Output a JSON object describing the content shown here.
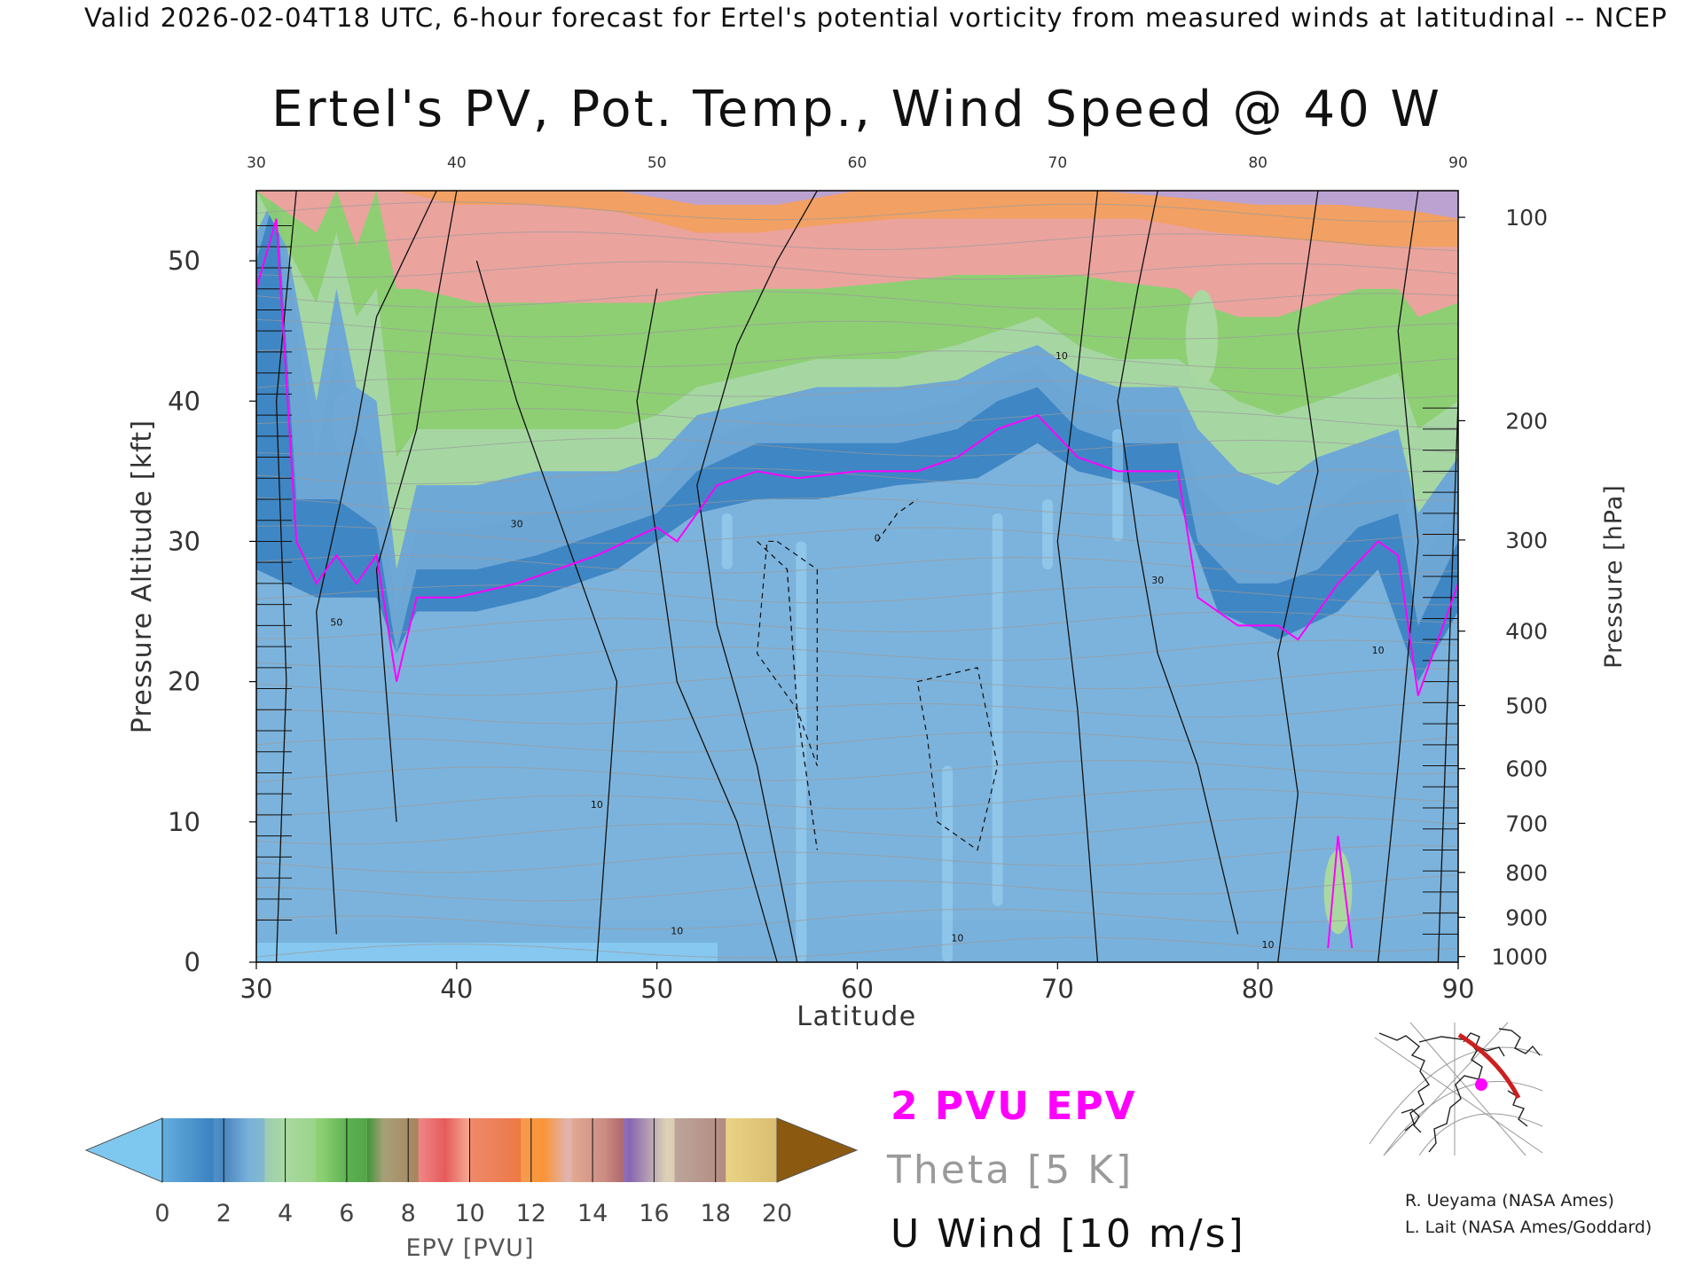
{
  "header": {
    "valid_line": "Valid 2026-02-04T18 UTC, 6-hour forecast for Ertel's potential vorticity from measured winds at latitudinal -- NCEP"
  },
  "chart_data": {
    "type": "heatmap",
    "title": "Ertel's PV, Pot. Temp., Wind Speed @ 40 W",
    "xlabel": "Latitude",
    "ylabel_left": "Pressure Altitude [kft]",
    "ylabel_right": "Pressure [hPa]",
    "xlim": [
      30,
      90
    ],
    "ylim": [
      0,
      55
    ],
    "x_ticks": [
      "30",
      "40",
      "50",
      "60",
      "70",
      "80",
      "90"
    ],
    "y_ticks": [
      "0",
      "10",
      "20",
      "30",
      "40",
      "50"
    ],
    "pressure_ticks": [
      {
        "label": "100",
        "kft": 53.1
      },
      {
        "label": "200",
        "kft": 38.6
      },
      {
        "label": "300",
        "kft": 30.1
      },
      {
        "label": "400",
        "kft": 23.6
      },
      {
        "label": "500",
        "kft": 18.3
      },
      {
        "label": "600",
        "kft": 13.8
      },
      {
        "label": "700",
        "kft": 9.9
      },
      {
        "label": "800",
        "kft": 6.4
      },
      {
        "label": "900",
        "kft": 3.2
      },
      {
        "label": "1000",
        "kft": 0.4
      }
    ],
    "tropopause_2pvu": [
      [
        30,
        48
      ],
      [
        31,
        53
      ],
      [
        32,
        30
      ],
      [
        33,
        27
      ],
      [
        34,
        29
      ],
      [
        35,
        27
      ],
      [
        36,
        29
      ],
      [
        37,
        20
      ],
      [
        38,
        26
      ],
      [
        40,
        26
      ],
      [
        43,
        27
      ],
      [
        47,
        29
      ],
      [
        50,
        31
      ],
      [
        51,
        30
      ],
      [
        53,
        34
      ],
      [
        55,
        35
      ],
      [
        57,
        34.5
      ],
      [
        60,
        35
      ],
      [
        63,
        35
      ],
      [
        65,
        36
      ],
      [
        67,
        38
      ],
      [
        69,
        39
      ],
      [
        71,
        36
      ],
      [
        73,
        35
      ],
      [
        76,
        35
      ],
      [
        77,
        26
      ],
      [
        79,
        24
      ],
      [
        81,
        24
      ],
      [
        82,
        23
      ],
      [
        84,
        27
      ],
      [
        86,
        30
      ],
      [
        87,
        29
      ],
      [
        88,
        19
      ],
      [
        89,
        23
      ],
      [
        90,
        27
      ]
    ],
    "pv_bands": [
      {
        "pvu": 1.5,
        "pts": [
          [
            30,
            28
          ],
          [
            33,
            26
          ],
          [
            36,
            26
          ],
          [
            37,
            22
          ],
          [
            38,
            25
          ],
          [
            41,
            25
          ],
          [
            44,
            26
          ],
          [
            48,
            28
          ],
          [
            50,
            30
          ],
          [
            52,
            32
          ],
          [
            55,
            33
          ],
          [
            58,
            33
          ],
          [
            62,
            34
          ],
          [
            66,
            34.5
          ],
          [
            69,
            37
          ],
          [
            71,
            35
          ],
          [
            74,
            34
          ],
          [
            76,
            33
          ],
          [
            78,
            25
          ],
          [
            81,
            23
          ],
          [
            84,
            25
          ],
          [
            86,
            28
          ],
          [
            88,
            20
          ],
          [
            90,
            25
          ]
        ]
      },
      {
        "pvu": 2.5,
        "pts": [
          [
            30,
            50
          ],
          [
            31,
            55
          ],
          [
            32,
            33
          ],
          [
            34,
            33
          ],
          [
            36,
            31
          ],
          [
            37,
            22
          ],
          [
            38,
            28
          ],
          [
            41,
            28
          ],
          [
            44,
            29
          ],
          [
            48,
            31
          ],
          [
            50,
            32
          ],
          [
            52,
            35
          ],
          [
            55,
            37
          ],
          [
            58,
            37
          ],
          [
            62,
            37
          ],
          [
            65,
            38
          ],
          [
            67,
            40
          ],
          [
            69,
            41
          ],
          [
            71,
            38
          ],
          [
            73,
            37
          ],
          [
            76,
            37
          ],
          [
            77,
            30
          ],
          [
            79,
            27
          ],
          [
            81,
            27
          ],
          [
            83,
            28
          ],
          [
            85,
            31
          ],
          [
            87,
            32
          ],
          [
            88,
            24
          ],
          [
            90,
            30
          ]
        ]
      },
      {
        "pvu": 3.5,
        "pts": [
          [
            30,
            51
          ],
          [
            31,
            55
          ],
          [
            33,
            36
          ],
          [
            34,
            44
          ],
          [
            35,
            38
          ],
          [
            36,
            36
          ],
          [
            37,
            25
          ],
          [
            38,
            31
          ],
          [
            41,
            31
          ],
          [
            44,
            32
          ],
          [
            48,
            33
          ],
          [
            50,
            34
          ],
          [
            52,
            37
          ],
          [
            55,
            38.5
          ],
          [
            58,
            39
          ],
          [
            62,
            39
          ],
          [
            65,
            40
          ],
          [
            67,
            41.5
          ],
          [
            69,
            42.5
          ],
          [
            71,
            40
          ],
          [
            73,
            39
          ],
          [
            76,
            39
          ],
          [
            77,
            34
          ],
          [
            79,
            31
          ],
          [
            81,
            30
          ],
          [
            83,
            32
          ],
          [
            85,
            34
          ],
          [
            87,
            35
          ],
          [
            88,
            28
          ],
          [
            90,
            33
          ]
        ]
      },
      {
        "pvu": 5.0,
        "pts": [
          [
            30,
            52
          ],
          [
            31,
            55
          ],
          [
            33,
            40
          ],
          [
            34,
            48
          ],
          [
            35,
            41
          ],
          [
            36,
            40
          ],
          [
            37,
            28
          ],
          [
            38,
            34
          ],
          [
            41,
            34
          ],
          [
            44,
            35
          ],
          [
            48,
            35
          ],
          [
            50,
            36
          ],
          [
            52,
            39
          ],
          [
            55,
            40
          ],
          [
            58,
            41
          ],
          [
            62,
            41
          ],
          [
            65,
            41.5
          ],
          [
            67,
            43
          ],
          [
            69,
            44
          ],
          [
            71,
            42
          ],
          [
            73,
            41
          ],
          [
            76,
            41
          ],
          [
            77,
            38
          ],
          [
            79,
            35
          ],
          [
            81,
            34
          ],
          [
            83,
            36
          ],
          [
            85,
            37
          ],
          [
            87,
            38
          ],
          [
            88,
            32
          ],
          [
            90,
            36
          ]
        ]
      },
      {
        "pvu": 6.5,
        "pts": [
          [
            30,
            55
          ],
          [
            33,
            47
          ],
          [
            34,
            52
          ],
          [
            35,
            46
          ],
          [
            36,
            48
          ],
          [
            37,
            36
          ],
          [
            38,
            38
          ],
          [
            41,
            38
          ],
          [
            44,
            38
          ],
          [
            48,
            38
          ],
          [
            50,
            39
          ],
          [
            52,
            41
          ],
          [
            55,
            42
          ],
          [
            58,
            43
          ],
          [
            62,
            43
          ],
          [
            65,
            44
          ],
          [
            67,
            45
          ],
          [
            69,
            46
          ],
          [
            71,
            44
          ],
          [
            73,
            43
          ],
          [
            76,
            43
          ],
          [
            77,
            42
          ],
          [
            79,
            40
          ],
          [
            81,
            39
          ],
          [
            83,
            40
          ],
          [
            85,
            41
          ],
          [
            87,
            42
          ],
          [
            88,
            38
          ],
          [
            90,
            40
          ]
        ]
      },
      {
        "pvu": 9.0,
        "pts": [
          [
            30,
            55
          ],
          [
            33,
            52
          ],
          [
            34,
            55
          ],
          [
            35,
            51
          ],
          [
            36,
            55
          ],
          [
            37,
            48
          ],
          [
            38,
            48
          ],
          [
            41,
            47
          ],
          [
            44,
            47
          ],
          [
            48,
            47
          ],
          [
            50,
            47
          ],
          [
            52,
            47.5
          ],
          [
            55,
            48
          ],
          [
            58,
            48
          ],
          [
            62,
            48.5
          ],
          [
            65,
            49
          ],
          [
            67,
            49
          ],
          [
            69,
            49
          ],
          [
            71,
            49
          ],
          [
            73,
            48.5
          ],
          [
            76,
            48
          ],
          [
            77,
            47
          ],
          [
            79,
            46
          ],
          [
            81,
            46
          ],
          [
            83,
            47
          ],
          [
            85,
            48
          ],
          [
            87,
            48
          ],
          [
            88,
            46
          ],
          [
            90,
            47
          ]
        ]
      },
      {
        "pvu": 12.5,
        "pts": [
          [
            30,
            55
          ],
          [
            36,
            55
          ],
          [
            37,
            55
          ],
          [
            40,
            54
          ],
          [
            44,
            54
          ],
          [
            48,
            53.5
          ],
          [
            52,
            52
          ],
          [
            55,
            52
          ],
          [
            58,
            52.5
          ],
          [
            62,
            53
          ],
          [
            66,
            53
          ],
          [
            70,
            53
          ],
          [
            74,
            53
          ],
          [
            78,
            52
          ],
          [
            82,
            51.5
          ],
          [
            86,
            51
          ],
          [
            90,
            51
          ]
        ]
      },
      {
        "pvu": 15.5,
        "pts": [
          [
            30,
            55
          ],
          [
            44,
            55
          ],
          [
            48,
            55
          ],
          [
            52,
            54
          ],
          [
            56,
            54
          ],
          [
            60,
            55
          ],
          [
            64,
            55
          ],
          [
            68,
            55
          ],
          [
            72,
            55
          ],
          [
            76,
            54.5
          ],
          [
            80,
            54
          ],
          [
            84,
            54
          ],
          [
            88,
            53.5
          ],
          [
            90,
            53
          ]
        ]
      }
    ],
    "pv_anomalies": [
      {
        "pvu": 2.5,
        "center": [
          34.3,
          38.5
        ],
        "radius_deg": 0.5
      },
      {
        "pvu": 5.0,
        "center": [
          77.2,
          44.5
        ],
        "radius_deg": 0.8
      },
      {
        "pvu": 4.0,
        "center": [
          84,
          5
        ],
        "radius_deg": 0.7
      }
    ],
    "theta_contours_K": [
      "300",
      "310",
      "320",
      "330",
      "340",
      "350",
      "360",
      "380",
      "400"
    ],
    "u_wind_contour_labels": [
      "0",
      "10",
      "30",
      "50"
    ],
    "colorbar": {
      "label": "EPV [PVU]",
      "tick_labels": [
        "0",
        "2",
        "4",
        "6",
        "8",
        "10",
        "12",
        "14",
        "16",
        "18",
        "20"
      ],
      "colors": [
        "#7ec8f0",
        "#3c84c2",
        "#6fa8d6",
        "#a9d9a0",
        "#8ccf72",
        "#3ca03c",
        "#f0a0a0",
        "#e34a3c",
        "#f2a060",
        "#ff8c1a",
        "#b7a2d6",
        "#6a3d9a",
        "#f5f0a0",
        "#8b5a10"
      ]
    }
  },
  "legend": {
    "epv_line": "2 PVU EPV",
    "theta_line": "Theta [5 K]",
    "wind_line": "U Wind [10 m/s]",
    "epv_color": "#ff00ff",
    "theta_color": "#9a9a9a",
    "wind_color": "#111111"
  },
  "credits": {
    "line1": "R. Ueyama (NASA Ames)",
    "line2": "L. Lait (NASA Ames/Goddard)"
  }
}
